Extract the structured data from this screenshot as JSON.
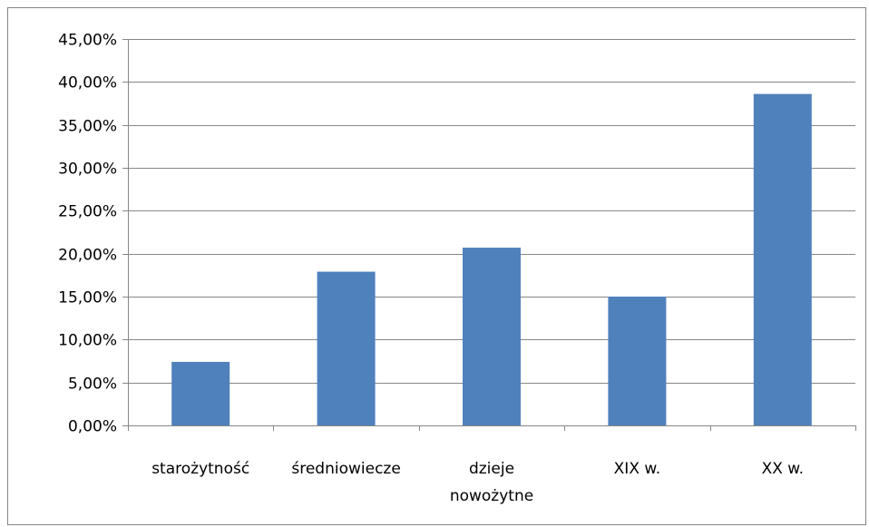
{
  "chart_data": {
    "type": "bar",
    "categories": [
      [
        "starożytność"
      ],
      [
        "średniowiecze"
      ],
      [
        "dzieje",
        "nowożytne"
      ],
      [
        "XIX w."
      ],
      [
        "XX w."
      ]
    ],
    "values": [
      0.074,
      0.179,
      0.207,
      0.15,
      0.386
    ],
    "ylim": [
      0,
      0.45
    ],
    "yticks": [
      "0,00%",
      "5,00%",
      "10,00%",
      "15,00%",
      "20,00%",
      "25,00%",
      "30,00%",
      "35,00%",
      "40,00%",
      "45,00%"
    ],
    "grid": true,
    "legend": "none",
    "title": "",
    "xlabel": "",
    "ylabel": "",
    "bar_color": "#4F81BD",
    "grid_color": "#878787",
    "axis_color": "#878787"
  }
}
